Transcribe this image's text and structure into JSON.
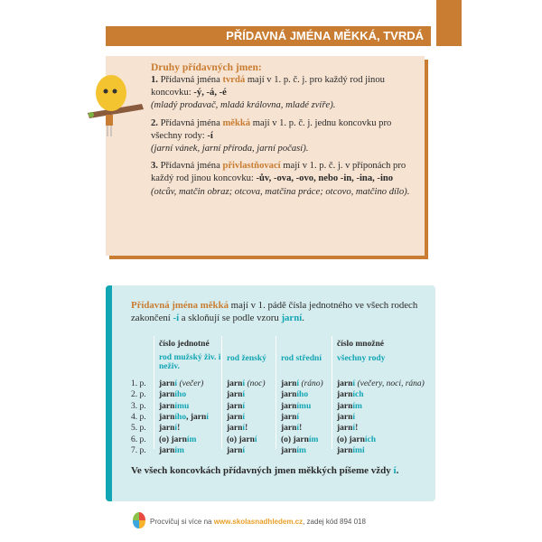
{
  "header": {
    "title": "PŘÍDAVNÁ JMÉNA MĚKKÁ, TVRDÁ"
  },
  "colors": {
    "orange": "#c97d32",
    "teal": "#12a5b3",
    "beige": "#f6e3d2",
    "light_teal": "#d6edf0"
  },
  "types": {
    "heading": "Druhy přídavných jmen:",
    "items": [
      {
        "num": "1.",
        "a": " Přídavná jména ",
        "key": "tvrdá",
        "b": " mají v 1. p. č. j. pro každý rod jinou koncovku: ",
        "endings": "-ý, -á, -é",
        "ex": "(mladý prodavač, mladá královna, mladé zvíře)."
      },
      {
        "num": "2.",
        "a": " Přídavná jména ",
        "key": "měkká",
        "b": " mají v 1. p. č. j. jednu koncovku pro všechny rody: ",
        "endings": "-í",
        "ex": "(jarní vánek, jarní příroda, jarní počasí)."
      },
      {
        "num": "3.",
        "a": " Přídavná jména ",
        "key": "přivlastňovací",
        "b": " mají v 1. p. č. j. v příponách pro každý rod jinou koncovku: ",
        "endings": "-ův, -ova, -ovo, nebo -in, -ina, -ino",
        "ex": "(otcův, matčin obraz; otcova, matčina práce; otcovo, matčino dílo)."
      }
    ]
  },
  "soft": {
    "intro_key": "Přídavná jména měkká",
    "intro_a": " mají v 1. pádě čísla jednotného ve všech rodech zakončení ",
    "intro_end": "-í",
    "intro_b": " a skloňují se podle vzoru ",
    "intro_model": "jarní",
    "intro_c": ".",
    "group_singular": "číslo jednotné",
    "group_plural": "číslo množné",
    "columns": [
      "rod mužský živ. i neživ.",
      "rod ženský",
      "rod střední",
      "všechny rody"
    ],
    "cases": [
      "1. p.",
      "2. p.",
      "3. p.",
      "4. p.",
      "5. p.",
      "6. p.",
      "7. p."
    ],
    "rows": [
      [
        [
          [
            "jarn",
            "b"
          ],
          [
            "í",
            "e"
          ],
          [
            " (večer)",
            "i"
          ]
        ],
        [
          [
            "jarn",
            "b"
          ],
          [
            "í",
            "e"
          ],
          [
            " (noc)",
            "i"
          ]
        ],
        [
          [
            "jarn",
            "b"
          ],
          [
            "í",
            "e"
          ],
          [
            " (ráno)",
            "i"
          ]
        ],
        [
          [
            "jarn",
            "b"
          ],
          [
            "í",
            "e"
          ],
          [
            " (večery, noci, rána)",
            "i"
          ]
        ]
      ],
      [
        [
          [
            "jarn",
            "b"
          ],
          [
            "ího",
            "e"
          ]
        ],
        [
          [
            "jarn",
            "b"
          ],
          [
            "í",
            "e"
          ]
        ],
        [
          [
            "jarn",
            "b"
          ],
          [
            "ího",
            "e"
          ]
        ],
        [
          [
            "jarn",
            "b"
          ],
          [
            "ích",
            "e"
          ]
        ]
      ],
      [
        [
          [
            "jarn",
            "b"
          ],
          [
            "ímu",
            "e"
          ]
        ],
        [
          [
            "jarn",
            "b"
          ],
          [
            "í",
            "e"
          ]
        ],
        [
          [
            "jarn",
            "b"
          ],
          [
            "ímu",
            "e"
          ]
        ],
        [
          [
            "jarn",
            "b"
          ],
          [
            "ím",
            "e"
          ]
        ]
      ],
      [
        [
          [
            "jarn",
            "b"
          ],
          [
            "ího",
            "e"
          ],
          [
            ", jarn",
            "b"
          ],
          [
            "í",
            "e"
          ]
        ],
        [
          [
            "jarn",
            "b"
          ],
          [
            "í",
            "e"
          ]
        ],
        [
          [
            "jarn",
            "b"
          ],
          [
            "í",
            "e"
          ]
        ],
        [
          [
            "jarn",
            "b"
          ],
          [
            "í",
            "e"
          ]
        ]
      ],
      [
        [
          [
            "jarn",
            "b"
          ],
          [
            "í",
            "e"
          ],
          [
            "!",
            "b"
          ]
        ],
        [
          [
            "jarn",
            "b"
          ],
          [
            "í",
            "e"
          ],
          [
            "!",
            "b"
          ]
        ],
        [
          [
            "jarn",
            "b"
          ],
          [
            "í",
            "e"
          ],
          [
            "!",
            "b"
          ]
        ],
        [
          [
            "jarn",
            "b"
          ],
          [
            "í",
            "e"
          ],
          [
            "!",
            "b"
          ]
        ]
      ],
      [
        [
          [
            "(o) jarn",
            "b"
          ],
          [
            "ím",
            "e"
          ]
        ],
        [
          [
            "(o) jarn",
            "b"
          ],
          [
            "í",
            "e"
          ]
        ],
        [
          [
            "(o) jarn",
            "b"
          ],
          [
            "ím",
            "e"
          ]
        ],
        [
          [
            "(o) jarn",
            "b"
          ],
          [
            "ích",
            "e"
          ]
        ]
      ],
      [
        [
          [
            "jarn",
            "b"
          ],
          [
            "ím",
            "e"
          ]
        ],
        [
          [
            "jarn",
            "b"
          ],
          [
            "í",
            "e"
          ]
        ],
        [
          [
            "jarn",
            "b"
          ],
          [
            "ím",
            "e"
          ]
        ],
        [
          [
            "jarn",
            "b"
          ],
          [
            "ími",
            "e"
          ]
        ]
      ]
    ],
    "conclusion": "Ve všech koncovkách přídavných jmen měkkých píšeme vždy ",
    "conclusion_end": "í",
    "conclusion_dot": "."
  },
  "footer": {
    "pre": "Procvičuj si více na ",
    "link": "www.skolasnadhledem.cz",
    "post": ", zadej kód 894 018",
    "icon": "balloon-icon"
  }
}
